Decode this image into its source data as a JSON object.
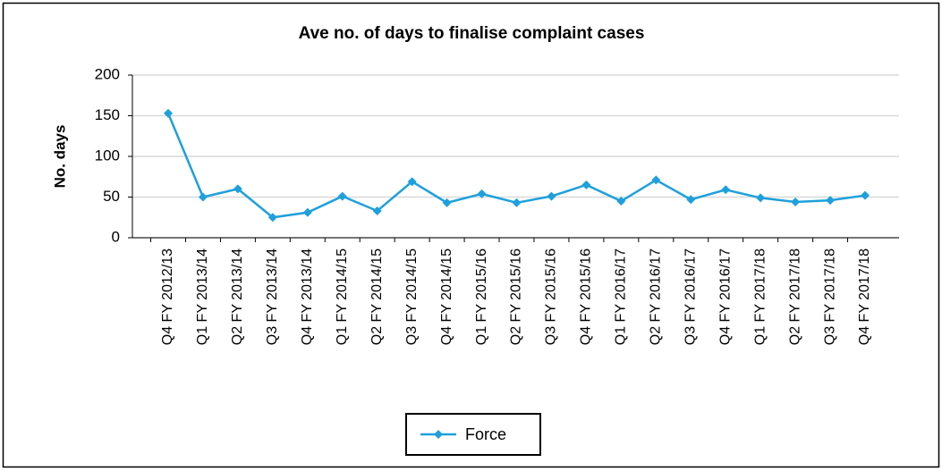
{
  "chart_data": {
    "type": "line",
    "title": "Ave no. of days to finalise complaint cases",
    "ylabel": "No. days",
    "categories": [
      "Q4 FY 2012/13",
      "Q1 FY 2013/14",
      "Q2 FY 2013/14",
      "Q3 FY 2013/14",
      "Q4 FY 2013/14",
      "Q1 FY 2014/15",
      "Q2 FY 2014/15",
      "Q3 FY 2014/15",
      "Q4 FY 2014/15",
      "Q1 FY 2015/16",
      "Q2 FY 2015/16",
      "Q3 FY 2015/16",
      "Q4 FY 2015/16",
      "Q1 FY 2016/17",
      "Q2 FY 2016/17",
      "Q3 FY 2016/17",
      "Q4 FY 2016/17",
      "Q1 FY 2017/18",
      "Q2 FY 2017/18",
      "Q3 FY 2017/18",
      "Q4 FY 2017/18"
    ],
    "series": [
      {
        "name": "Force",
        "color": "#1ea0dc",
        "values": [
          153,
          50,
          60,
          25,
          31,
          51,
          33,
          69,
          43,
          54,
          43,
          51,
          65,
          45,
          71,
          47,
          59,
          49,
          44,
          46,
          52
        ]
      }
    ],
    "ylim": [
      0,
      200
    ],
    "yticks": [
      0,
      50,
      100,
      150,
      200
    ],
    "grid": true,
    "legend": "bottom"
  }
}
